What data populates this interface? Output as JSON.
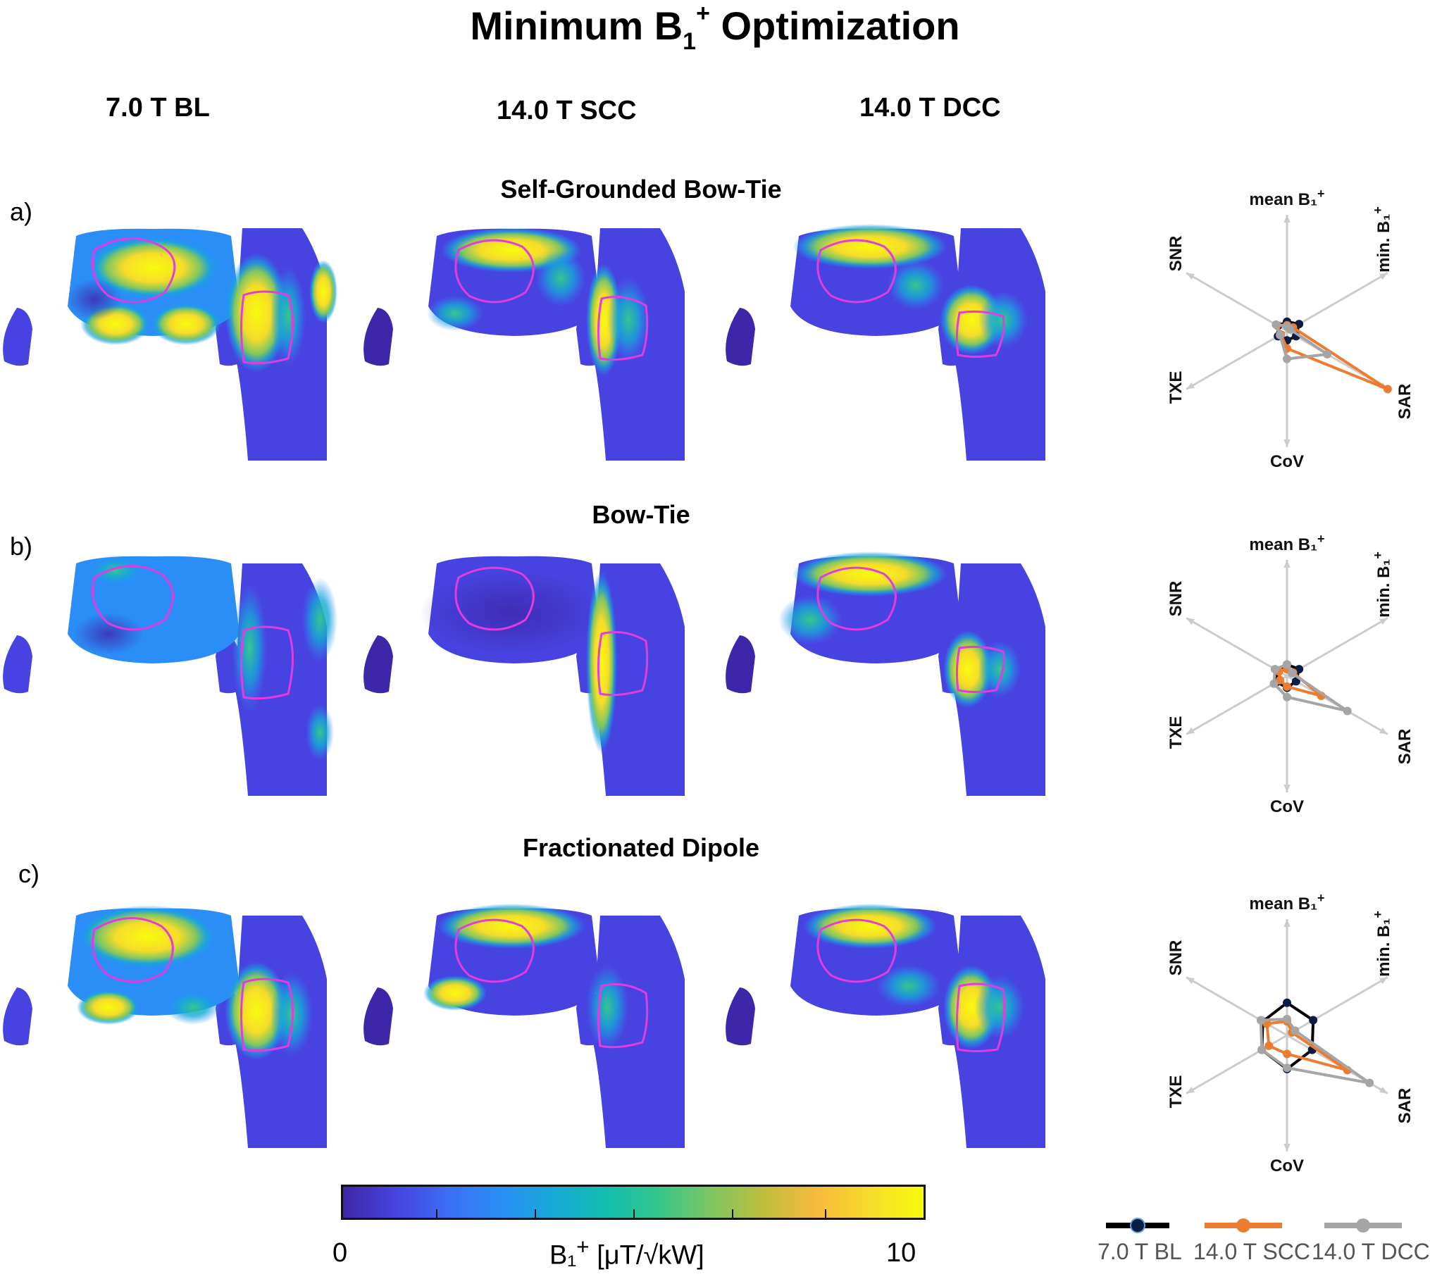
{
  "figure": {
    "title_main": "Minimum B",
    "title_sub": "1",
    "title_sup": "+",
    "title_rest": " Optimization"
  },
  "columns": [
    "7.0 T BL",
    "14.0 T SCC",
    "14.0 T DCC"
  ],
  "rows": [
    {
      "label": "a)",
      "title": "Self-Grounded Bow-Tie"
    },
    {
      "label": "b)",
      "title": "Bow-Tie"
    },
    {
      "label": "c)",
      "title": "Fractionated Dipole"
    }
  ],
  "radar": {
    "axes": [
      "mean B₁⁺",
      "min. B₁⁺",
      "SAR",
      "CoV",
      "TXE",
      "SNR"
    ],
    "axis_labels": {
      "mean": "mean B₁",
      "mean_sup": "+",
      "min": "min. B₁",
      "min_sup": "+",
      "sar": "SAR",
      "cov": "CoV",
      "txe": "TXE",
      "snr": "SNR"
    }
  },
  "chart_data": [
    {
      "type": "radar",
      "panel": "a)",
      "axes": [
        "mean B1+",
        "min. B1+",
        "SAR",
        "CoV",
        "TXE",
        "SNR"
      ],
      "series": [
        {
          "name": "7.0 T BL",
          "values": [
            0.08,
            0.12,
            0.09,
            0.08,
            0.09,
            0.09
          ]
        },
        {
          "name": "14.0 T SCC",
          "values": [
            0.05,
            0.06,
            1.0,
            0.15,
            0.06,
            0.1
          ]
        },
        {
          "name": "14.0 T DCC",
          "values": [
            0.04,
            0.03,
            0.4,
            0.24,
            0.07,
            0.11
          ]
        }
      ]
    },
    {
      "type": "radar",
      "panel": "b)",
      "axes": [
        "mean B1+",
        "min. B1+",
        "SAR",
        "CoV",
        "TXE",
        "SNR"
      ],
      "series": [
        {
          "name": "7.0 T BL",
          "values": [
            0.1,
            0.12,
            0.09,
            0.1,
            0.1,
            0.1
          ]
        },
        {
          "name": "14.0 T SCC",
          "values": [
            0.06,
            0.06,
            0.34,
            0.09,
            0.07,
            0.08
          ]
        },
        {
          "name": "14.0 T DCC",
          "values": [
            0.1,
            0.05,
            0.6,
            0.18,
            0.13,
            0.12
          ]
        }
      ]
    },
    {
      "type": "radar",
      "panel": "c)",
      "axes": [
        "mean B1+",
        "min. B1+",
        "SAR",
        "CoV",
        "TXE",
        "SNR"
      ],
      "series": [
        {
          "name": "7.0 T BL",
          "values": [
            0.28,
            0.26,
            0.25,
            0.29,
            0.25,
            0.24
          ]
        },
        {
          "name": "14.0 T SCC",
          "values": [
            0.12,
            0.05,
            0.6,
            0.16,
            0.18,
            0.2
          ]
        },
        {
          "name": "14.0 T DCC",
          "values": [
            0.14,
            0.08,
            0.82,
            0.28,
            0.25,
            0.26
          ]
        }
      ]
    }
  ],
  "colorbar": {
    "min_label": "0",
    "max_label": "10",
    "label": "B₁",
    "label_sup": "+",
    "label_units": " [μT/√kW]",
    "colormap": "parula",
    "stops": [
      "#3e26a8",
      "#4743e0",
      "#3b6ef5",
      "#2b8ef7",
      "#16aad6",
      "#13bdae",
      "#35c78c",
      "#7fc662",
      "#c2bd3c",
      "#f8ba3c",
      "#f6dc2a",
      "#f9fb0e"
    ]
  },
  "legend": [
    {
      "name": "7.0 T BL",
      "color": "#000000",
      "marker": "#0a1d45"
    },
    {
      "name": "14.0 T SCC",
      "color": "#ec7c30",
      "marker": "#ec7c30"
    },
    {
      "name": "14.0 T DCC",
      "color": "#a5a5a5",
      "marker": "#a5a5a5"
    }
  ],
  "colors": {
    "outline": "#e23be0",
    "axis": "#cccccc"
  }
}
